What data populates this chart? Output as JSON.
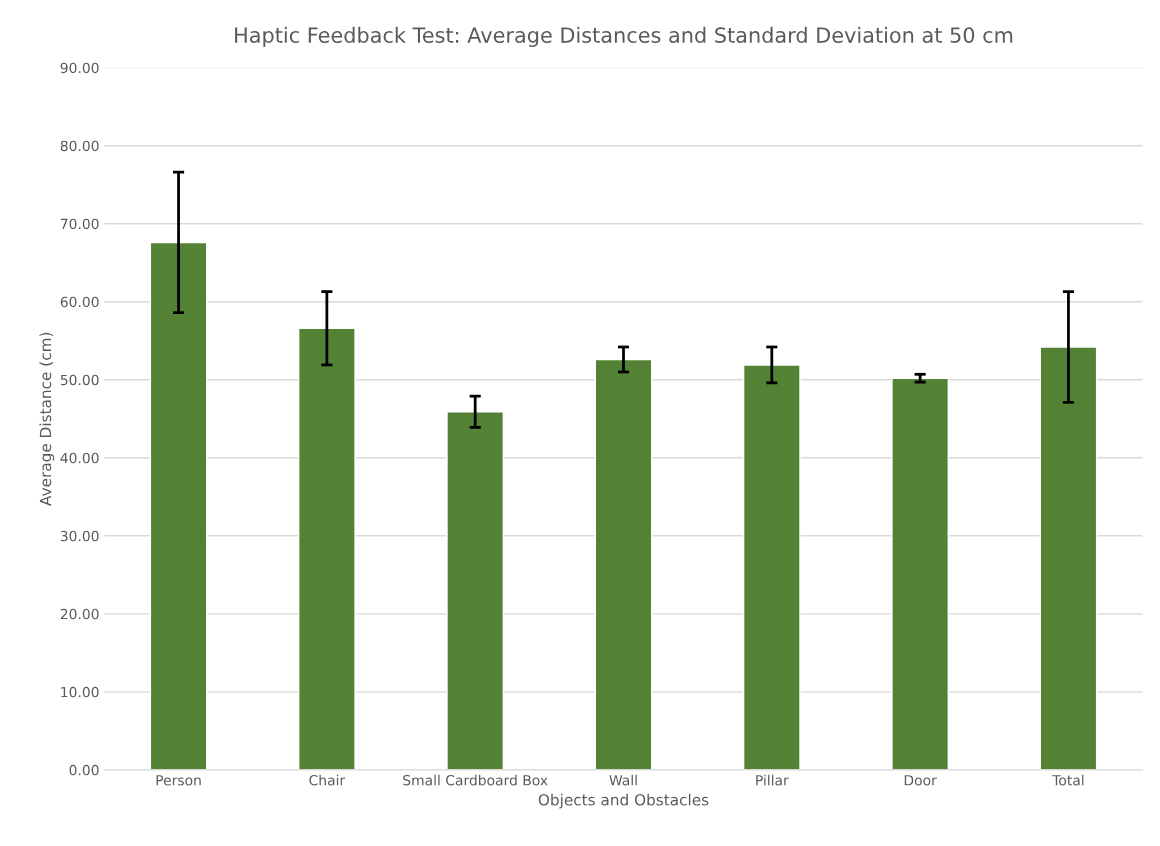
{
  "chart_data": {
    "type": "bar",
    "title": "Haptic Feedback Test: Average Distances and Standard Deviation at 50 cm",
    "xlabel": "Objects and Obstacles",
    "ylabel": "Average Distance (cm)",
    "categories": [
      "Person",
      "Chair",
      "Small Cardboard Box",
      "Wall",
      "Pillar",
      "Door",
      "Total"
    ],
    "values": [
      67.6,
      56.6,
      45.9,
      52.6,
      51.9,
      50.2,
      54.2
    ],
    "errors": [
      9.0,
      4.7,
      2.0,
      1.6,
      2.3,
      0.5,
      7.1
    ],
    "color": "#548235",
    "ylim": [
      0,
      90
    ],
    "yticks": [
      {
        "value": 0,
        "label": "0.00"
      },
      {
        "value": 10,
        "label": "10.00"
      },
      {
        "value": 20,
        "label": "20.00"
      },
      {
        "value": 30,
        "label": "30.00"
      },
      {
        "value": 40,
        "label": "40.00"
      },
      {
        "value": 50,
        "label": "50.00"
      },
      {
        "value": 60,
        "label": "60.00"
      },
      {
        "value": 70,
        "label": "70.00"
      },
      {
        "value": 80,
        "label": "80.00"
      },
      {
        "value": 90,
        "label": "90.00"
      }
    ],
    "grid": "y"
  }
}
